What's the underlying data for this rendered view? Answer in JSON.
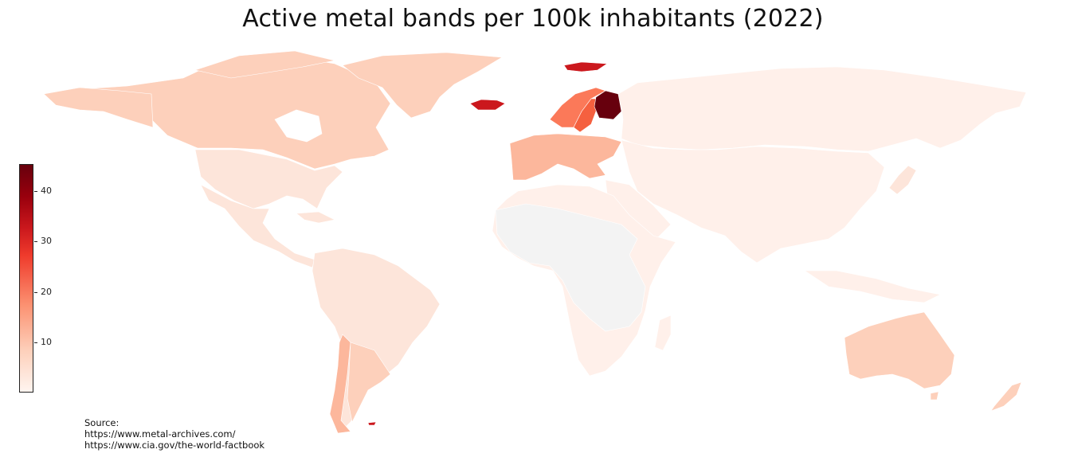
{
  "title": "Active metal bands per 100k inhabitants (2022)",
  "colorbar": {
    "ticks": [
      "10",
      "20",
      "30",
      "40"
    ],
    "tick_values": [
      10,
      20,
      30,
      40
    ],
    "min": 0.5,
    "max": 45.5,
    "colors": [
      "#fff5f0",
      "#fdd0bb",
      "#fc9272",
      "#ef3b2c",
      "#cb181d",
      "#99000d",
      "#67000d"
    ]
  },
  "source": {
    "heading": "Source:",
    "line1": "https://www.metal-archives.com/",
    "line2": "https://www.cia.gov/the-world-factbook"
  },
  "map_colors": {
    "finland": "#67000d",
    "iceland": "#cb181d",
    "svalbard": "#cb181d",
    "sweden": "#f5603f",
    "norway": "#fb7959",
    "high_europe": "#fcb79c",
    "mid": "#fdd0bb",
    "low": "#fde5da",
    "very_low": "#fff0ea",
    "no_data": "#f3f3f3"
  }
}
